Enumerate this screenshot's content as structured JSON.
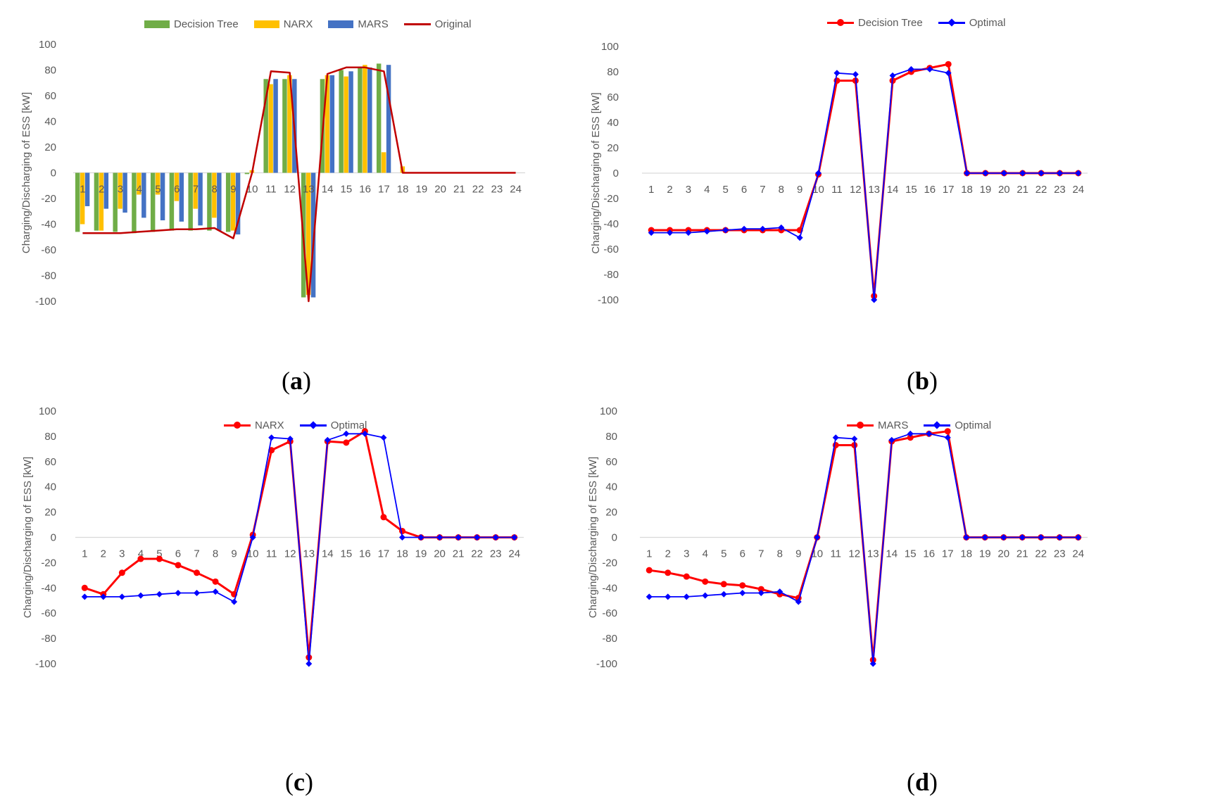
{
  "chart_data": [
    {
      "id": "a",
      "type": "bar",
      "caption": "a",
      "ylabel": "Charging/Discharging of ESS [kW]",
      "ylim": [
        -100,
        100
      ],
      "yticks": [
        100,
        80,
        60,
        40,
        20,
        0,
        -20,
        -40,
        -60,
        -80,
        -100
      ],
      "categories": [
        "1",
        "2",
        "3",
        "4",
        "5",
        "6",
        "7",
        "8",
        "9",
        "10",
        "11",
        "12",
        "13",
        "14",
        "15",
        "16",
        "17",
        "18",
        "19",
        "20",
        "21",
        "22",
        "23",
        "24"
      ],
      "legend": [
        "Decision Tree",
        "NARX",
        "MARS",
        "Original"
      ],
      "series": [
        {
          "name": "Decision Tree",
          "kind": "bar",
          "color": "#70ad47",
          "values": [
            -46,
            -45,
            -46,
            -47,
            -46,
            -45,
            -45,
            -45,
            -46,
            -1,
            73,
            73,
            -97,
            73,
            80,
            82,
            85,
            0,
            0,
            0,
            0,
            0,
            0,
            0
          ]
        },
        {
          "name": "NARX",
          "kind": "bar",
          "color": "#ffc000",
          "values": [
            -40,
            -45,
            -28,
            -17,
            -17,
            -22,
            -28,
            -35,
            -45,
            2,
            69,
            76,
            -95,
            76,
            75,
            84,
            16,
            5,
            0,
            0,
            0,
            0,
            0,
            0
          ]
        },
        {
          "name": "MARS",
          "kind": "bar",
          "color": "#4472c4",
          "values": [
            -26,
            -28,
            -31,
            -35,
            -37,
            -38,
            -41,
            -45,
            -48,
            0,
            73,
            73,
            -97,
            76,
            79,
            82,
            84,
            0,
            0,
            0,
            0,
            0,
            0,
            0
          ]
        },
        {
          "name": "Original",
          "kind": "line",
          "color": "#c00000",
          "values": [
            -47,
            -47,
            -47,
            -46,
            -45,
            -44,
            -44,
            -43,
            -51,
            0,
            79,
            78,
            -100,
            77,
            82,
            82,
            79,
            0,
            0,
            0,
            0,
            0,
            0,
            0
          ]
        }
      ]
    },
    {
      "id": "b",
      "type": "line",
      "caption": "b",
      "ylabel": "Charging/Discharging of ESS [kW]",
      "ylim": [
        -100,
        100
      ],
      "yticks": [
        100,
        80,
        60,
        40,
        20,
        0,
        -20,
        -40,
        -60,
        -80,
        -100
      ],
      "categories": [
        "1",
        "2",
        "3",
        "4",
        "5",
        "6",
        "7",
        "8",
        "9",
        "10",
        "11",
        "12",
        "13",
        "14",
        "15",
        "16",
        "17",
        "18",
        "19",
        "20",
        "21",
        "22",
        "23",
        "24"
      ],
      "legend": [
        "Decision Tree",
        "Optimal"
      ],
      "series": [
        {
          "name": "Decision Tree",
          "kind": "line",
          "marker": "circle",
          "color": "#ff0000",
          "values": [
            -45,
            -45,
            -45,
            -45,
            -45,
            -45,
            -45,
            -45,
            -45,
            -1,
            73,
            73,
            -97,
            73,
            80,
            83,
            86,
            0,
            0,
            0,
            0,
            0,
            0,
            0
          ]
        },
        {
          "name": "Optimal",
          "kind": "line",
          "marker": "diamond",
          "color": "#0000ff",
          "values": [
            -47,
            -47,
            -47,
            -46,
            -45,
            -44,
            -44,
            -43,
            -51,
            0,
            79,
            78,
            -100,
            77,
            82,
            82,
            79,
            0,
            0,
            0,
            0,
            0,
            0,
            0
          ]
        }
      ]
    },
    {
      "id": "c",
      "type": "line",
      "caption": "c",
      "ylabel": "Charging/Discharging of ESS [kW]",
      "ylim": [
        -100,
        100
      ],
      "yticks": [
        100,
        80,
        60,
        40,
        20,
        0,
        -20,
        -40,
        -60,
        -80,
        -100
      ],
      "categories": [
        "1",
        "2",
        "3",
        "4",
        "5",
        "6",
        "7",
        "8",
        "9",
        "10",
        "11",
        "12",
        "13",
        "14",
        "15",
        "16",
        "17",
        "18",
        "19",
        "20",
        "21",
        "22",
        "23",
        "24"
      ],
      "legend": [
        "NARX",
        "Optimal"
      ],
      "series": [
        {
          "name": "NARX",
          "kind": "line",
          "marker": "circle",
          "color": "#ff0000",
          "values": [
            -40,
            -45,
            -28,
            -17,
            -17,
            -22,
            -28,
            -35,
            -45,
            2,
            69,
            76,
            -95,
            76,
            75,
            84,
            16,
            5,
            0,
            0,
            0,
            0,
            0,
            0
          ]
        },
        {
          "name": "Optimal",
          "kind": "line",
          "marker": "diamond",
          "color": "#0000ff",
          "values": [
            -47,
            -47,
            -47,
            -46,
            -45,
            -44,
            -44,
            -43,
            -51,
            0,
            79,
            78,
            -100,
            77,
            82,
            82,
            79,
            0,
            0,
            0,
            0,
            0,
            0,
            0
          ]
        }
      ]
    },
    {
      "id": "d",
      "type": "line",
      "caption": "d",
      "ylabel": "Charging/Discharging of ESS [kW]",
      "ylim": [
        -100,
        100
      ],
      "yticks": [
        100,
        80,
        60,
        40,
        20,
        0,
        -20,
        -40,
        -60,
        -80,
        -100
      ],
      "categories": [
        "1",
        "2",
        "3",
        "4",
        "5",
        "6",
        "7",
        "8",
        "9",
        "10",
        "11",
        "12",
        "13",
        "14",
        "15",
        "16",
        "17",
        "18",
        "19",
        "20",
        "21",
        "22",
        "23",
        "24"
      ],
      "legend": [
        "MARS",
        "Optimal"
      ],
      "series": [
        {
          "name": "MARS",
          "kind": "line",
          "marker": "circle",
          "color": "#ff0000",
          "values": [
            -26,
            -28,
            -31,
            -35,
            -37,
            -38,
            -41,
            -45,
            -48,
            0,
            73,
            73,
            -97,
            76,
            79,
            82,
            84,
            0,
            0,
            0,
            0,
            0,
            0,
            0
          ]
        },
        {
          "name": "Optimal",
          "kind": "line",
          "marker": "diamond",
          "color": "#0000ff",
          "values": [
            -47,
            -47,
            -47,
            -46,
            -45,
            -44,
            -44,
            -43,
            -51,
            0,
            79,
            78,
            -100,
            77,
            82,
            82,
            79,
            0,
            0,
            0,
            0,
            0,
            0,
            0
          ]
        }
      ]
    }
  ]
}
